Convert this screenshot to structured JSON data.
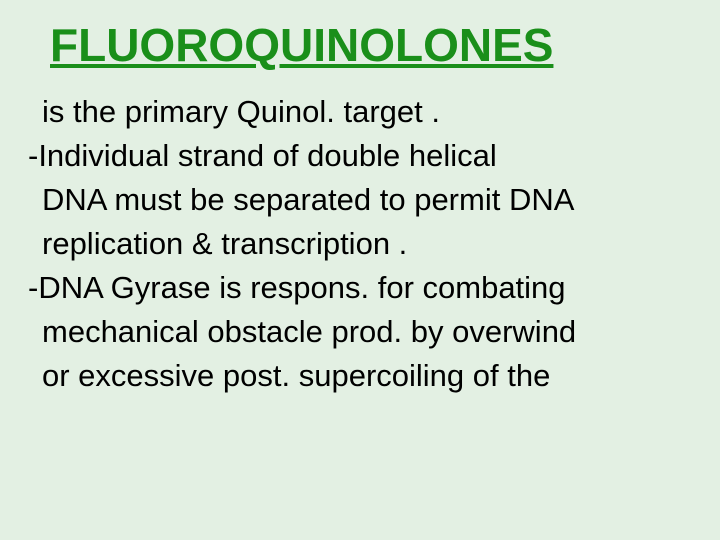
{
  "slide": {
    "title": "FLUOROQUINOLONES",
    "title_color": "#1a8f1a",
    "title_fontsize": 46,
    "title_underline": true,
    "background_color": "#e3f0e3",
    "body_fontsize": 31,
    "body_color": "#000000",
    "lines": [
      {
        "text": " is the primary Quinol. target .",
        "indent": true
      },
      {
        "text": "-Individual  strand of double helical",
        "indent": false
      },
      {
        "text": " DNA must be separated to permit DNA",
        "indent": true
      },
      {
        "text": " replication & transcription .",
        "indent": true
      },
      {
        "text": "-DNA Gyrase is respons. for combating",
        "indent": false
      },
      {
        "text": " mechanical obstacle prod. by overwind",
        "indent": true
      },
      {
        "text": " or excessive post. supercoiling of the",
        "indent": true
      }
    ]
  }
}
